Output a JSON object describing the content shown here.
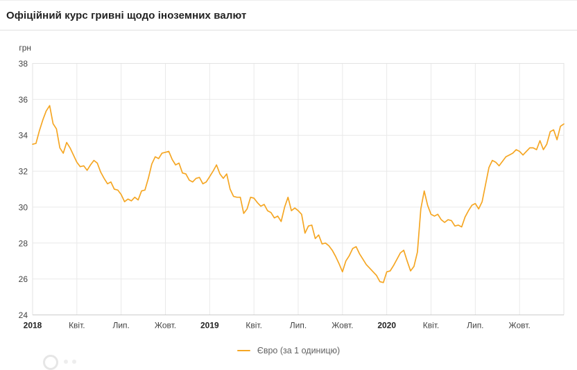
{
  "header": {
    "title": "Офіційний курс гривні щодо іноземних валют"
  },
  "chart_data": {
    "type": "line",
    "title": "Офіційний курс гривні щодо іноземних валют",
    "ylabel": "грн",
    "ylim": [
      24,
      38
    ],
    "y_ticks": [
      38,
      36,
      34,
      32,
      30,
      28,
      26,
      24
    ],
    "x_domain": [
      "2018-01",
      "2020-12"
    ],
    "sampling": "weekly, values in UAH per 1 EUR (estimated from plot)",
    "grid": true,
    "legend": {
      "label": "Євро (за 1 одиницю)",
      "position": "bottom-center"
    },
    "colors": {
      "line": "#F5A623",
      "grid": "#e9e9e9",
      "axis": "#cccccc",
      "border": "#e3e3e3",
      "tick_text": "#424242",
      "year_text": "#212121"
    },
    "x_ticks": [
      {
        "label": "2018",
        "bold": true
      },
      {
        "label": "Квіт.",
        "bold": false
      },
      {
        "label": "Лип.",
        "bold": false
      },
      {
        "label": "Жовт.",
        "bold": false
      },
      {
        "label": "2019",
        "bold": true
      },
      {
        "label": "Квіт.",
        "bold": false
      },
      {
        "label": "Лип.",
        "bold": false
      },
      {
        "label": "Жовт.",
        "bold": false
      },
      {
        "label": "2020",
        "bold": true
      },
      {
        "label": "Квіт.",
        "bold": false
      },
      {
        "label": "Лип.",
        "bold": false
      },
      {
        "label": "Жовт.",
        "bold": false
      }
    ],
    "series": [
      {
        "name": "Євро (за 1 одиницю)",
        "color": "#F5A623",
        "values": [
          33.5,
          33.55,
          34.25,
          34.85,
          35.35,
          35.65,
          34.65,
          34.35,
          33.3,
          33.0,
          33.6,
          33.3,
          32.9,
          32.5,
          32.25,
          32.3,
          32.05,
          32.35,
          32.6,
          32.45,
          31.95,
          31.6,
          31.3,
          31.4,
          31.0,
          30.95,
          30.7,
          30.3,
          30.45,
          30.35,
          30.55,
          30.4,
          30.9,
          30.95,
          31.6,
          32.4,
          32.8,
          32.7,
          33.0,
          33.05,
          33.1,
          32.65,
          32.35,
          32.45,
          31.9,
          31.85,
          31.5,
          31.4,
          31.6,
          31.65,
          31.3,
          31.4,
          31.7,
          32.0,
          32.35,
          31.85,
          31.6,
          31.85,
          31.0,
          30.6,
          30.55,
          30.55,
          29.65,
          29.9,
          30.55,
          30.5,
          30.25,
          30.05,
          30.15,
          29.8,
          29.7,
          29.4,
          29.5,
          29.2,
          30.0,
          30.55,
          29.8,
          29.95,
          29.8,
          29.6,
          28.55,
          28.95,
          29.0,
          28.25,
          28.45,
          27.95,
          28.0,
          27.85,
          27.6,
          27.25,
          26.85,
          26.4,
          27.0,
          27.3,
          27.7,
          27.8,
          27.4,
          27.1,
          26.8,
          26.6,
          26.4,
          26.2,
          25.85,
          25.8,
          26.4,
          26.45,
          26.75,
          27.1,
          27.45,
          27.6,
          27.0,
          26.45,
          26.7,
          27.5,
          29.9,
          30.9,
          30.1,
          29.6,
          29.5,
          29.6,
          29.3,
          29.15,
          29.3,
          29.25,
          28.95,
          29.0,
          28.9,
          29.45,
          29.8,
          30.1,
          30.2,
          29.9,
          30.3,
          31.25,
          32.2,
          32.6,
          32.5,
          32.3,
          32.55,
          32.8,
          32.9,
          33.0,
          33.2,
          33.1,
          32.9,
          33.1,
          33.3,
          33.3,
          33.2,
          33.7,
          33.2,
          33.5,
          34.2,
          34.3,
          33.75,
          34.5,
          34.63
        ]
      }
    ]
  }
}
